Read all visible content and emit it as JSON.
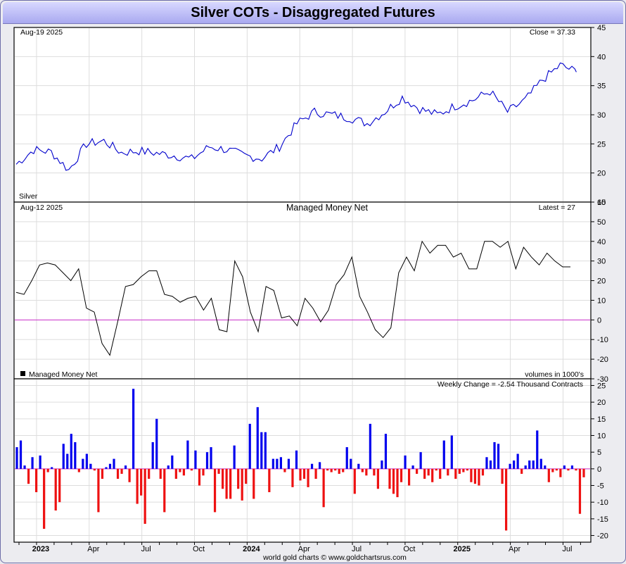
{
  "title": "Silver COTs - Disaggregated Futures",
  "footer": "world gold charts © www.goldchartsrus.com",
  "colors": {
    "price": "#0000cc",
    "net": "#000000",
    "zero": "#cc33cc",
    "pos": "#0000ee",
    "neg": "#ee1111",
    "grid": "#dddddd"
  },
  "x_labels": [
    "2023",
    "Apr",
    "Jul",
    "Oct",
    "2024",
    "Apr",
    "Jul",
    "Oct",
    "2025",
    "Apr",
    "Jul"
  ],
  "x_label_bold": [
    true,
    false,
    false,
    false,
    true,
    false,
    false,
    false,
    true,
    false,
    false
  ],
  "chart_data": [
    {
      "type": "line",
      "name": "price",
      "date_label": "Aug-19  2025",
      "latest_label": "Close = 37.33",
      "series_label": "Silver",
      "ylim": [
        15,
        45
      ],
      "yticks": [
        15,
        20,
        25,
        30,
        35,
        40,
        45
      ],
      "x": [
        "2022-12",
        "2023-01",
        "2023-02",
        "2023-03",
        "2023-04",
        "2023-05",
        "2023-06",
        "2023-07",
        "2023-08",
        "2023-09",
        "2023-10",
        "2023-11",
        "2023-12",
        "2024-01",
        "2024-02",
        "2024-03",
        "2024-04",
        "2024-05",
        "2024-06",
        "2024-07",
        "2024-08",
        "2024-09",
        "2024-10",
        "2024-11",
        "2024-12",
        "2025-01",
        "2025-02",
        "2025-03",
        "2025-04",
        "2025-05",
        "2025-06",
        "2025-07",
        "2025-08"
      ],
      "values": [
        21.5,
        24.0,
        23.6,
        20.5,
        25.0,
        25.5,
        23.5,
        23.8,
        23.4,
        23.0,
        22.4,
        24.5,
        24.0,
        23.0,
        22.5,
        24.5,
        28.5,
        30.5,
        30.0,
        29.5,
        28.5,
        30.5,
        33.0,
        31.0,
        30.0,
        31.5,
        32.5,
        34.0,
        30.5,
        32.5,
        36.0,
        38.5,
        37.33
      ]
    },
    {
      "type": "line",
      "name": "Managed Money Net",
      "date_label": "Aug-12  2025",
      "title": "Managed Money Net",
      "latest_label": "Latest = 27",
      "legend": "Managed Money Net",
      "units": "volumes in 1000's",
      "ylim": [
        -30,
        60
      ],
      "yticks": [
        -30,
        -20,
        -10,
        0,
        10,
        20,
        30,
        40,
        50,
        60
      ],
      "x": [
        0,
        2,
        4,
        6,
        8,
        10,
        12,
        14,
        16,
        18,
        20,
        22,
        24,
        26,
        28,
        30,
        32,
        34,
        36,
        38,
        40,
        42,
        44,
        46,
        48,
        50,
        52,
        54,
        56,
        58,
        60,
        62,
        64,
        66,
        68,
        70,
        72,
        74,
        76,
        78,
        80,
        82,
        84,
        86,
        88,
        90,
        92,
        94,
        96,
        98,
        100,
        102,
        104,
        106,
        108,
        110,
        112,
        114,
        116,
        118,
        120,
        122,
        124,
        126,
        128,
        130,
        132,
        134,
        136,
        138,
        140,
        142
      ],
      "values": [
        14,
        13,
        20,
        28,
        29,
        28,
        24,
        20,
        26,
        6,
        4,
        -12,
        -18,
        -1,
        17,
        18,
        22,
        25,
        25,
        13,
        12,
        9,
        11,
        12,
        5,
        11,
        -5,
        -6,
        30,
        22,
        4,
        -6,
        17,
        15,
        1,
        2,
        -3,
        11,
        6,
        -1,
        5,
        18,
        23,
        32,
        12,
        4,
        -5,
        -9,
        -4,
        24,
        32,
        25,
        40,
        34,
        38,
        38,
        32,
        34,
        26,
        26,
        40,
        40,
        37,
        40,
        26,
        37,
        32,
        28,
        34,
        30,
        27,
        27
      ],
      "values_note": ""
    },
    {
      "type": "bar",
      "name": "Weekly Change",
      "latest_label": "Weekly Change = -2.54 Thousand Contracts",
      "ylim": [
        -22,
        27
      ],
      "yticks": [
        -20,
        -15,
        -10,
        -5,
        0,
        5,
        10,
        15,
        20,
        25
      ],
      "values": [
        6.5,
        8.5,
        1,
        -4.5,
        3.5,
        -7,
        4,
        -18,
        -1,
        0.5,
        -12.5,
        -10,
        7.5,
        4.5,
        10.5,
        8,
        -1,
        3,
        4.5,
        1.5,
        -0.5,
        -13,
        -3,
        0.5,
        1.5,
        3,
        -3,
        -1.5,
        1,
        -4,
        24,
        -10.5,
        -8,
        -16.5,
        -3,
        8,
        15,
        -3,
        -13,
        1,
        4,
        -3,
        -1,
        -2,
        8.5,
        -0.5,
        5.5,
        -5,
        -2,
        5,
        6.5,
        -13,
        -1.5,
        -6,
        -9,
        -9,
        7,
        -6,
        -9.5,
        -4.5,
        13.5,
        -9,
        18.5,
        11,
        11,
        -7,
        3,
        3,
        3.5,
        -1,
        3,
        -5.5,
        5.5,
        -3.5,
        -3,
        -5.5,
        1.5,
        -3,
        2,
        -11.5,
        -0.5,
        -1,
        -0.5,
        -1.5,
        -1,
        6.5,
        3,
        -7.5,
        1.5,
        -1,
        -2,
        13.5,
        -2,
        -6,
        2.5,
        10.5,
        -6,
        -7.5,
        -8.5,
        -4,
        4,
        -5,
        1,
        -1.5,
        5,
        -3,
        -2,
        -4,
        -0.5,
        -3,
        8.5,
        -2,
        10,
        -3,
        -1.5,
        -1,
        -0.5,
        -4,
        -4.5,
        -5,
        -2,
        3.5,
        2.5,
        8,
        7.5,
        -4.5,
        -18.5,
        1.5,
        2.5,
        4.5,
        -1.5,
        1,
        2.5,
        2.5,
        11.5,
        3,
        1,
        -4,
        -1,
        -0.5,
        -2.5,
        1,
        -0.5,
        1,
        -0.5,
        -13.5,
        -2.54
      ]
    }
  ]
}
